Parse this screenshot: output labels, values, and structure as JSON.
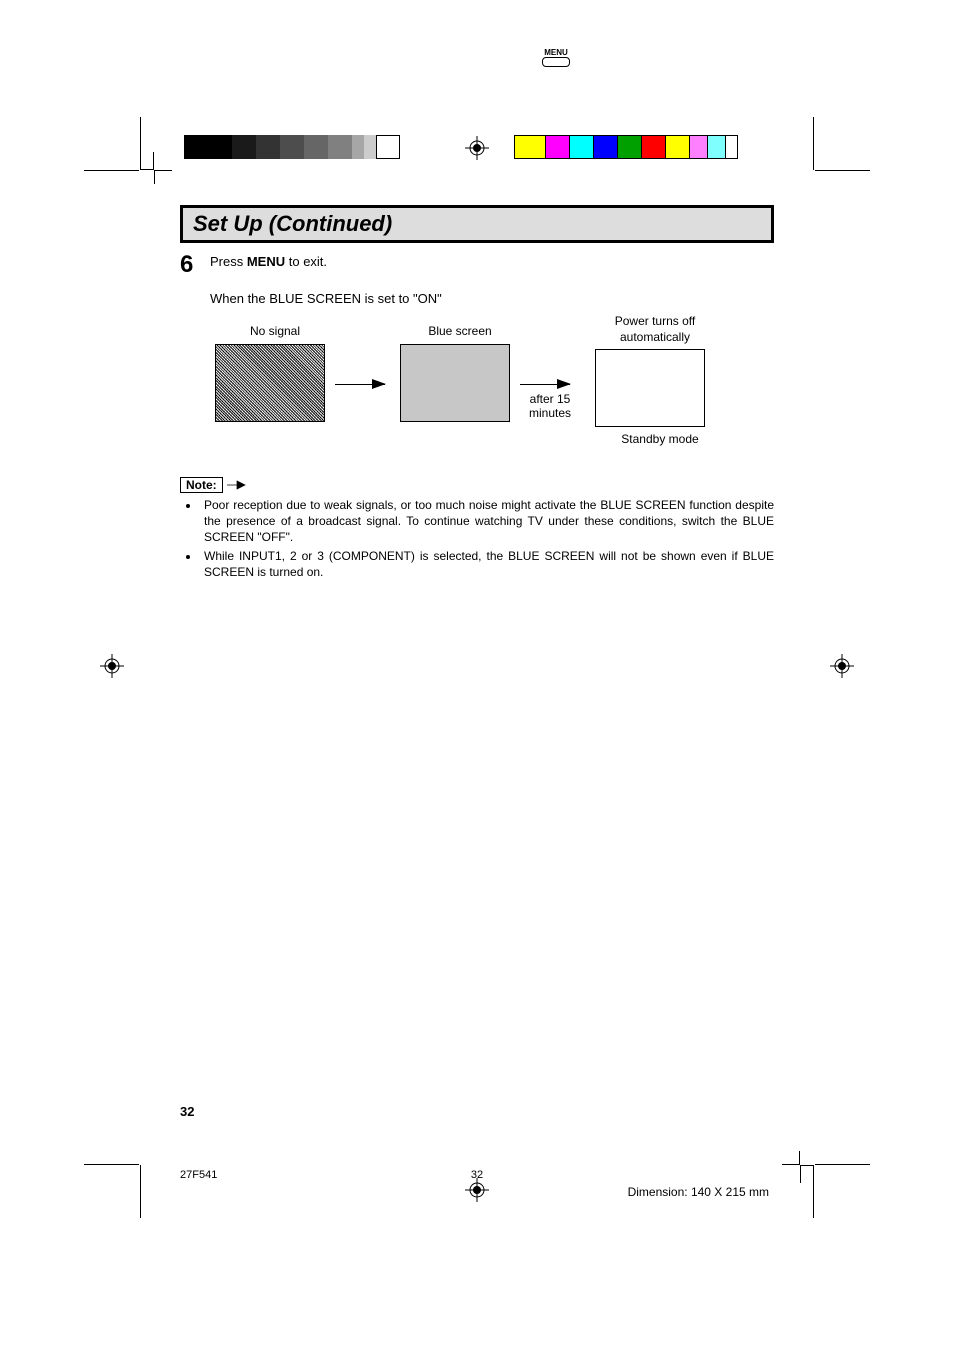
{
  "colorbars": {
    "grayscale": [
      "#000000",
      "#000000",
      "#1a1a1a",
      "#333333",
      "#4d4d4d",
      "#666666",
      "#808080",
      "#a6a6a6",
      "#cccccc",
      "#ffffff"
    ],
    "grayscale_widths": [
      24,
      24,
      24,
      24,
      24,
      24,
      24,
      12,
      12,
      24
    ],
    "color": [
      "#ffff00",
      "#ff00ff",
      "#00ffff",
      "#0000ff",
      "#00a000",
      "#ff0000",
      "#ffff00",
      "#ff80ff",
      "#80ffff",
      "#ffffff"
    ],
    "color_widths": [
      32,
      24,
      24,
      24,
      24,
      24,
      24,
      18,
      18,
      12
    ]
  },
  "title": "Set Up (Continued)",
  "step": {
    "num": "6",
    "text_prefix": "Press ",
    "text_bold": "MENU",
    "text_suffix": " to exit.",
    "menu_btn_label": "MENU"
  },
  "subtext": "When the BLUE SCREEN is set to \"ON\"",
  "diagram": {
    "no_signal": "No  signal",
    "blue_screen": "Blue  screen",
    "after": "after  15 minutes",
    "power_off": "Power  turns  off automatically",
    "standby": "Standby  mode"
  },
  "note": {
    "label": "Note:",
    "items": [
      "Poor reception due to weak signals, or too much noise might activate the BLUE SCREEN function despite the presence of a broadcast signal. To continue watching TV under these conditions, switch the BLUE SCREEN \"OFF\".",
      "While INPUT1, 2 or 3 (COMPONENT) is selected, the BLUE SCREEN will not be shown even if BLUE SCREEN is turned on."
    ]
  },
  "page_number": "32",
  "footer": {
    "model": "27F541",
    "page": "32",
    "dimension": "Dimension: 140  X 215 mm"
  }
}
